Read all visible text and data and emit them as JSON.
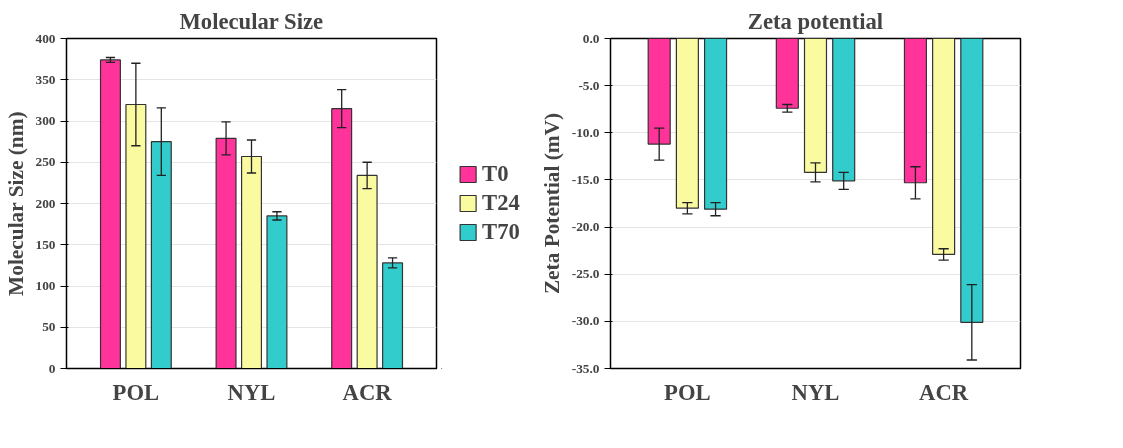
{
  "chart_data": [
    {
      "type": "bar",
      "title": "Molecular Size",
      "ylabel": "Molecular Size (nm)",
      "categories": [
        "POL",
        "NYL",
        "ACR"
      ],
      "ylim": [
        0,
        400
      ],
      "yticks": [
        0,
        50,
        100,
        150,
        200,
        250,
        300,
        350,
        400
      ],
      "grid": "y",
      "legend": "right",
      "series": [
        {
          "name": "T0",
          "color": "#ff3399",
          "values": [
            374,
            279,
            315
          ],
          "errors": [
            3,
            20,
            23
          ]
        },
        {
          "name": "T24",
          "color": "#fafaa0",
          "values": [
            320,
            257,
            234
          ],
          "errors": [
            50,
            20,
            16
          ]
        },
        {
          "name": "T70",
          "color": "#33cccc",
          "values": [
            275,
            185,
            128
          ],
          "errors": [
            41,
            5,
            6
          ]
        }
      ]
    },
    {
      "type": "bar",
      "title": "Zeta potential",
      "ylabel": "Zeta Potential (mV)",
      "categories": [
        "POL",
        "NYL",
        "ACR"
      ],
      "ylim": [
        -35,
        0
      ],
      "yticks": [
        {
          "value": -35,
          "label": "-35.0"
        },
        {
          "value": -30,
          "label": "-30.0"
        },
        {
          "value": -25,
          "label": "-25.0"
        },
        {
          "value": -20,
          "label": "-20.0"
        },
        {
          "value": -15,
          "label": "-15.0"
        },
        {
          "value": -10,
          "label": "-10.0"
        },
        {
          "value": -5,
          "label": "-5.0"
        },
        {
          "value": 0,
          "label": "0.0"
        }
      ],
      "grid": "y",
      "series": [
        {
          "color": "#ff3399",
          "values": [
            -11.2,
            -7.4,
            -15.3
          ],
          "errors": [
            1.7,
            0.4,
            1.7
          ]
        },
        {
          "color": "#fafaa0",
          "values": [
            -18.0,
            -14.2,
            -22.9
          ],
          "errors": [
            0.6,
            1.0,
            0.6
          ]
        },
        {
          "color": "#33cccc",
          "values": [
            -18.1,
            -15.1,
            -30.1
          ],
          "errors": [
            0.7,
            0.9,
            4.0
          ]
        }
      ]
    }
  ]
}
